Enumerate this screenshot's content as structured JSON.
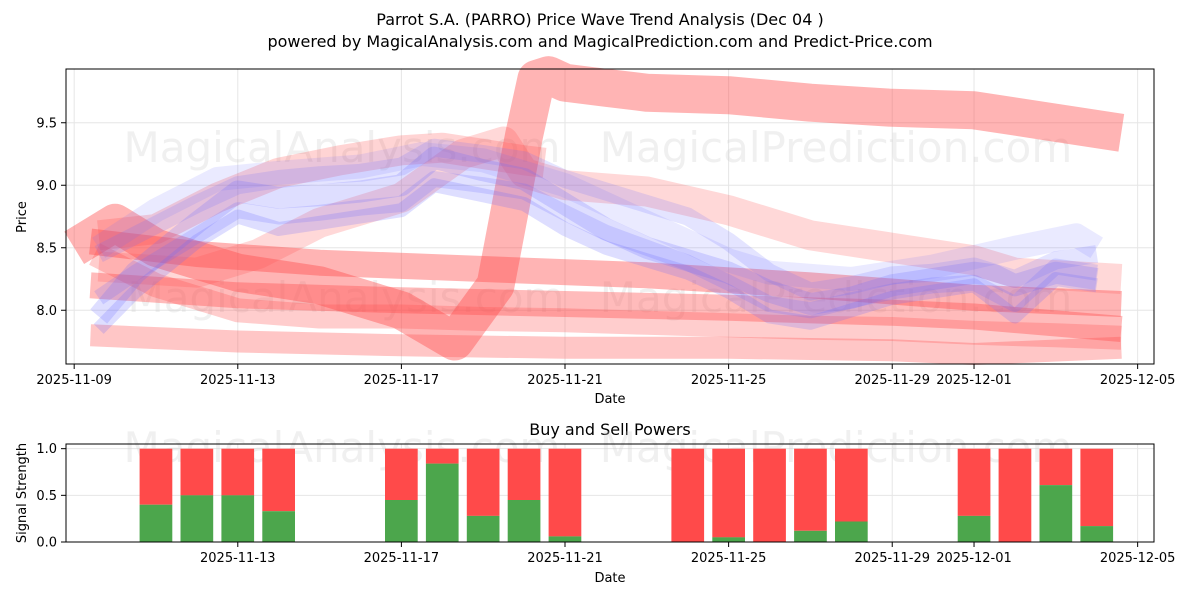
{
  "chart_data": [
    {
      "type": "line",
      "title_line1": "Parrot S.A. (PARRO) Price Wave Trend Analysis (Dec 04 )",
      "title_line2": "powered by MagicalAnalysis.com and MagicalPrediction.com and Predict-Price.com",
      "xlabel": "Date",
      "ylabel": "Price",
      "xlim": [
        -0.2,
        26.4
      ],
      "ylim": [
        7.57,
        9.93
      ],
      "x_ticks": [
        {
          "label": "2025-11-09",
          "day": 0
        },
        {
          "label": "2025-11-13",
          "day": 4
        },
        {
          "label": "2025-11-17",
          "day": 8
        },
        {
          "label": "2025-11-21",
          "day": 12
        },
        {
          "label": "2025-11-25",
          "day": 16
        },
        {
          "label": "2025-11-29",
          "day": 20
        },
        {
          "label": "2025-12-01",
          "day": 22
        },
        {
          "label": "2025-12-05",
          "day": 26
        }
      ],
      "y_ticks": [
        8.0,
        8.5,
        9.0,
        9.5
      ],
      "grid": true,
      "watermarks": [
        "MagicalAnalysis.com",
        "MagicalPrediction.com",
        "MagicalAnalysis.com",
        "MagicalPrediction.com"
      ],
      "blue_waves": [
        {
          "name": "wave-blue-1",
          "x": [
            0.6,
            1.5,
            3,
            4,
            5,
            6,
            7,
            8,
            8.8,
            10,
            11,
            12,
            13,
            14,
            15,
            16,
            17,
            18,
            19,
            20,
            21,
            22,
            22.5,
            23,
            24,
            25
          ],
          "y": [
            7.95,
            8.3,
            8.7,
            8.95,
            8.9,
            8.92,
            8.95,
            9.0,
            9.22,
            9.12,
            9.05,
            8.85,
            8.65,
            8.5,
            8.4,
            8.3,
            8.15,
            8.05,
            8.1,
            8.2,
            8.25,
            8.3,
            8.28,
            8.2,
            8.3,
            8.25
          ]
        },
        {
          "name": "wave-blue-2",
          "x": [
            0.6,
            1.5,
            3,
            4,
            5,
            6,
            7,
            8,
            8.8,
            10,
            11,
            12,
            13,
            14,
            15,
            16,
            17,
            18,
            19,
            20,
            21,
            22,
            23,
            24,
            25
          ],
          "y": [
            8.45,
            8.6,
            8.85,
            9.0,
            9.05,
            9.08,
            9.1,
            9.15,
            9.3,
            9.25,
            9.2,
            9.05,
            8.95,
            8.85,
            8.75,
            8.55,
            8.3,
            8.15,
            8.2,
            8.28,
            8.3,
            8.35,
            8.25,
            8.4,
            8.45
          ]
        },
        {
          "name": "wave-blue-3",
          "x": [
            0.6,
            1.5,
            3,
            4,
            5,
            6,
            7,
            8,
            8.8,
            10,
            11,
            12,
            13,
            14,
            15,
            16,
            17,
            18,
            19,
            20,
            21,
            22,
            23,
            24,
            25
          ],
          "y": [
            8.1,
            8.3,
            8.6,
            8.8,
            8.75,
            8.78,
            8.82,
            8.85,
            9.05,
            9.0,
            8.95,
            8.78,
            8.62,
            8.5,
            8.38,
            8.22,
            8.05,
            8.0,
            8.08,
            8.15,
            8.2,
            8.22,
            8.05,
            8.35,
            8.3
          ]
        },
        {
          "name": "wave-blue-4",
          "x": [
            0.6,
            1.5,
            3,
            4,
            5,
            6,
            7,
            8,
            8.8,
            10,
            11,
            12,
            13,
            14,
            15,
            16,
            17,
            18,
            19,
            20,
            21,
            22,
            23,
            24,
            25
          ],
          "y": [
            7.85,
            8.15,
            8.55,
            8.75,
            8.65,
            8.7,
            8.75,
            8.8,
            9.0,
            8.92,
            8.85,
            8.65,
            8.5,
            8.4,
            8.3,
            8.15,
            7.95,
            7.9,
            8.0,
            8.1,
            8.15,
            8.2,
            7.95,
            8.25,
            8.2
          ]
        },
        {
          "name": "wave-blue-5",
          "x": [
            0.6,
            2,
            3.5,
            5,
            7,
            8.5,
            10,
            12,
            14,
            16,
            17,
            19,
            21,
            23,
            24.5,
            25
          ],
          "y": [
            8.5,
            8.8,
            9.05,
            9.1,
            9.15,
            9.25,
            9.2,
            9.0,
            8.7,
            8.4,
            8.3,
            8.25,
            8.35,
            8.5,
            8.6,
            8.5
          ]
        }
      ],
      "red_waves": [
        {
          "name": "wave-red-1",
          "x": [
            0.4,
            3,
            6,
            10,
            14,
            18,
            22,
            25.6
          ],
          "y": [
            8.55,
            8.45,
            8.38,
            8.33,
            8.28,
            8.2,
            8.1,
            8.05
          ]
        },
        {
          "name": "wave-red-2",
          "x": [
            0.4,
            4,
            8,
            12,
            16,
            20,
            22,
            25.6
          ],
          "y": [
            8.2,
            8.12,
            8.08,
            8.05,
            8.02,
            7.98,
            7.95,
            7.85
          ]
        },
        {
          "name": "wave-red-3",
          "x": [
            0.4,
            4,
            8,
            12,
            16,
            20,
            22,
            25.6
          ],
          "y": [
            7.8,
            7.75,
            7.72,
            7.7,
            7.7,
            7.68,
            7.65,
            7.7
          ]
        },
        {
          "name": "wave-red-4",
          "x": [
            0.6,
            3,
            4.5,
            6,
            8,
            9.5,
            10.5,
            11,
            12,
            14,
            16,
            18,
            20,
            22,
            23,
            25.6
          ],
          "y": [
            8.35,
            8.3,
            8.45,
            8.7,
            8.9,
            9.25,
            9.35,
            9.1,
            9.0,
            8.95,
            8.8,
            8.6,
            8.5,
            8.4,
            8.3,
            8.25
          ]
        },
        {
          "name": "wave-red-5",
          "x": [
            0,
            1,
            2,
            4,
            6,
            8,
            9.3,
            10.3,
            11,
            11.3,
            11.6,
            12,
            13,
            14,
            16,
            18,
            20,
            22,
            23,
            24,
            25.6
          ],
          "y": [
            8.5,
            8.7,
            8.5,
            8.3,
            8.2,
            8.0,
            7.75,
            8.2,
            9.4,
            9.85,
            9.88,
            9.82,
            9.78,
            9.74,
            9.72,
            9.66,
            9.62,
            9.6,
            9.55,
            9.5,
            9.42
          ]
        },
        {
          "name": "wave-red-6",
          "x": [
            0.6,
            2,
            3.5,
            5,
            6.5,
            8,
            9,
            10,
            11,
            11.5
          ],
          "y": [
            8.6,
            8.65,
            8.9,
            9.1,
            9.2,
            9.28,
            9.3,
            9.25,
            9.2,
            9.18
          ]
        },
        {
          "name": "wave-red-7",
          "x": [
            0.5,
            2,
            4,
            6,
            8,
            10,
            12,
            14,
            16,
            18,
            20,
            22,
            24,
            25.6
          ],
          "y": [
            8.45,
            8.2,
            8.0,
            7.95,
            7.95,
            7.93,
            7.92,
            7.9,
            7.88,
            7.86,
            7.85,
            7.82,
            7.8,
            7.78
          ]
        }
      ]
    },
    {
      "type": "bar",
      "title": "Buy and Sell Powers",
      "xlabel": "Date",
      "ylabel": "Signal Strength",
      "ylim": [
        0,
        1.05
      ],
      "y_ticks": [
        "0.0",
        "0.5",
        "1.0"
      ],
      "x_ticks": [
        {
          "label": "2025-11-13",
          "day": 4
        },
        {
          "label": "2025-11-17",
          "day": 8
        },
        {
          "label": "2025-11-21",
          "day": 12
        },
        {
          "label": "2025-11-25",
          "day": 16
        },
        {
          "label": "2025-11-29",
          "day": 20
        },
        {
          "label": "2025-12-01",
          "day": 22
        },
        {
          "label": "2025-12-05",
          "day": 26
        }
      ],
      "buy_color": "#4ca64c",
      "sell_color": "#ff4a4a",
      "bars": [
        {
          "date": "2025-11-11",
          "day": 2,
          "buy": 0.4
        },
        {
          "date": "2025-11-12",
          "day": 3,
          "buy": 0.5
        },
        {
          "date": "2025-11-13",
          "day": 4,
          "buy": 0.5
        },
        {
          "date": "2025-11-14",
          "day": 5,
          "buy": 0.33
        },
        {
          "date": "2025-11-17",
          "day": 8,
          "buy": 0.45
        },
        {
          "date": "2025-11-18",
          "day": 9,
          "buy": 0.84
        },
        {
          "date": "2025-11-19",
          "day": 10,
          "buy": 0.28
        },
        {
          "date": "2025-11-20",
          "day": 11,
          "buy": 0.45
        },
        {
          "date": "2025-11-21",
          "day": 12,
          "buy": 0.06
        },
        {
          "date": "2025-11-24",
          "day": 15,
          "buy": 0.0
        },
        {
          "date": "2025-11-25",
          "day": 16,
          "buy": 0.05
        },
        {
          "date": "2025-11-26",
          "day": 17,
          "buy": 0.0
        },
        {
          "date": "2025-11-27",
          "day": 18,
          "buy": 0.12
        },
        {
          "date": "2025-11-28",
          "day": 19,
          "buy": 0.22
        },
        {
          "date": "2025-12-01",
          "day": 22,
          "buy": 0.28
        },
        {
          "date": "2025-12-02",
          "day": 23,
          "buy": 0.0
        },
        {
          "date": "2025-12-03",
          "day": 24,
          "buy": 0.61
        },
        {
          "date": "2025-12-04",
          "day": 25,
          "buy": 0.17
        }
      ]
    }
  ]
}
